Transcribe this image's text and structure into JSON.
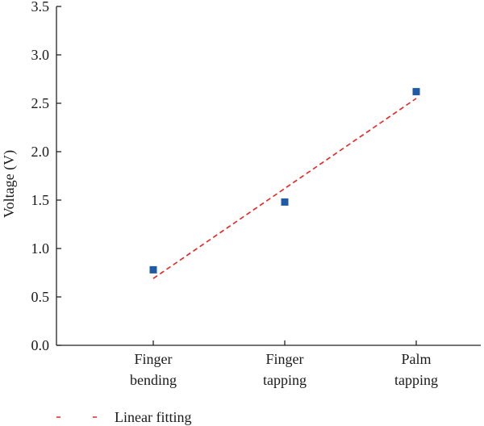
{
  "chart_data": {
    "type": "scatter",
    "title": "",
    "xlabel": "",
    "ylabel": "Voltage (V)",
    "categories": [
      [
        "Finger",
        "bending"
      ],
      [
        "Finger",
        "tapping"
      ],
      [
        "Palm",
        "tapping"
      ]
    ],
    "ylim": [
      0.0,
      3.5
    ],
    "yticks": [
      "0.0",
      "0.5",
      "1.0",
      "1.5",
      "2.0",
      "2.5",
      "3.0",
      "3.5"
    ],
    "series": [
      {
        "type": "scatter",
        "values": [
          0.78,
          1.48,
          2.62
        ],
        "color": "#1f5aa6",
        "marker": "square"
      },
      {
        "name": "Linear fitting",
        "type": "line",
        "style": "dashed",
        "values": [
          0.69,
          1.62,
          2.55
        ],
        "color": "#e8231f"
      }
    ],
    "legend": {
      "placement": "bottom-left",
      "label": "Linear fitting"
    },
    "grid": false
  }
}
